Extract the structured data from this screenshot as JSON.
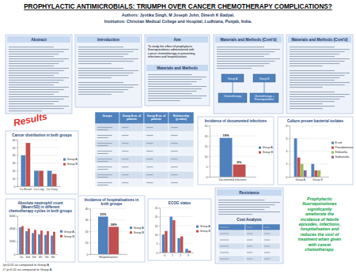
{
  "header": {
    "title": "PROPHYLACTIC ANTIMICROBIALS: TRIUMPH OVER CANCER CHEMOTHERAPY COMPLICATIONS?",
    "authors": "Authors: Jyotika Singh, M Joseph John, Dinesh K Badyal.",
    "institution": "Institution: Christian Medical College and Hospital, Ludhiana, Punjab, India."
  },
  "sections": {
    "abstract": "Abstract",
    "introduction": "Introduction",
    "aim": "Aim",
    "aim_text": "To study the effect of prophylactic fluoroquinolones administered with cancer chemotherapy in preventing infections and hospitalisation.",
    "methods": "Materials and Methods",
    "methods_cont_1": "Materials and Methods (Cont'd)",
    "methods_cont_2": "Materials and Methods (Cont'd)",
    "results": "Results",
    "resistance": "Resistance",
    "cost_analysis": "Cost Analysis"
  },
  "diagram": {
    "nodes": [
      {
        "label": "Group A"
      },
      {
        "label": "Group B"
      },
      {
        "label": "Chemotherapy"
      },
      {
        "label": "Chemotherapy + Fluoroquinolone"
      }
    ]
  },
  "table": {
    "header": [
      "Groups",
      "Group A no. of patients",
      "Group B no. of patients",
      "Relationship (p value)"
    ]
  },
  "chart_data": [
    {
      "type": "bar",
      "title": "Cancer distribution in both groups",
      "categories": [
        "Ca Breast",
        "Ca Lung",
        "Ca Ovary"
      ],
      "series": [
        {
          "name": "Group A",
          "color": "#4f81bd",
          "values": [
            40,
            20,
            20
          ]
        },
        {
          "name": "Group B",
          "color": "#c0504d",
          "values": [
            56,
            20,
            16
          ]
        }
      ],
      "ylim": [
        0,
        60
      ],
      "yticks": [
        0,
        10,
        20,
        30,
        40,
        50,
        60
      ],
      "grid": true,
      "legend": "right"
    },
    {
      "type": "bar",
      "title": "Incidence of documented infections",
      "categories": [
        "Documented Infections"
      ],
      "series": [
        {
          "name": "Group A",
          "color": "#4f81bd",
          "values": [
            19
          ],
          "value_labels": [
            "19%"
          ]
        },
        {
          "name": "Group B",
          "color": "#c0504d",
          "values": [
            6
          ],
          "value_labels": [
            "6%"
          ]
        }
      ],
      "ylim": [
        0,
        25
      ],
      "yticks": [
        0,
        5,
        10,
        15,
        20,
        25
      ],
      "grid": true,
      "legend": "right",
      "data_labels": true
    },
    {
      "type": "bar",
      "title": "Culture proven bacterial isolates",
      "categories": [
        "Group A",
        "Group B"
      ],
      "series": [
        {
          "name": "E.coli",
          "color": "#4f81bd",
          "values": [
            6,
            2
          ]
        },
        {
          "name": "Pseudomonas",
          "color": "#c0504d",
          "values": [
            3,
            1
          ]
        },
        {
          "name": "Klebsiella",
          "color": "#9bbb59",
          "values": [
            2,
            1
          ]
        },
        {
          "name": "Salmonella",
          "color": "#8064a2",
          "values": [
            1,
            0
          ]
        }
      ],
      "ylim": [
        0,
        8
      ],
      "yticks": [
        0,
        2,
        4,
        6,
        8
      ],
      "grid": true,
      "legend": "right"
    },
    {
      "type": "bar",
      "title": "Absolute neutrophil count (Mean±SD) in different chemotherapy cycles in both groups",
      "categories": [
        "1st",
        "2nd",
        "3rd",
        "4th",
        "5th",
        "6th"
      ],
      "series": [
        {
          "name": "Group A",
          "color": "#4f81bd",
          "values": [
            4200,
            3600,
            3300,
            3100,
            3000,
            2900
          ]
        },
        {
          "name": "Group B",
          "color": "#c0504d",
          "values": [
            4400,
            4000,
            3800,
            3700,
            3600,
            3500
          ]
        }
      ],
      "ylim": [
        0,
        6000
      ],
      "yticks": [
        0,
        2000,
        4000,
        6000
      ],
      "grid": true,
      "legend": "right"
    },
    {
      "type": "bar",
      "title": "Incidence of hospitalisations in both groups",
      "categories": [
        "Hospitalisations"
      ],
      "series": [
        {
          "name": "Group A",
          "color": "#4f81bd",
          "values": [
            33
          ],
          "value_labels": [
            "33%"
          ]
        },
        {
          "name": "Group B",
          "color": "#c0504d",
          "values": [
            24
          ],
          "value_labels": [
            "24%"
          ]
        }
      ],
      "ylim": [
        0,
        40
      ],
      "yticks": [
        0,
        10,
        20,
        30,
        40
      ],
      "grid": true,
      "legend": "right",
      "data_labels": true
    },
    {
      "type": "bar",
      "title": "ECOG status",
      "categories": [
        "0",
        "1",
        "2",
        "3"
      ],
      "series": [
        {
          "name": "Group A",
          "color": "#4f81bd",
          "values": [
            10,
            20,
            8,
            2
          ]
        },
        {
          "name": "Group B",
          "color": "#c0504d",
          "values": [
            12,
            18,
            9,
            1
          ]
        }
      ],
      "ylim": [
        0,
        25
      ],
      "yticks": [
        0,
        5,
        10,
        15,
        20,
        25
      ],
      "grid": true,
      "legend": "right"
    }
  ],
  "conclusion": "Prophylactic fluoroquinolones significantly ameliorate the incidence of febrile episodes, infections, hospitalisation and reduces the cost of treatment when given with cancer chemotherapy.",
  "footnotes": [
    "#p<0.05 as compared to Group A",
    "## p<0.01 as compared to Group A"
  ]
}
